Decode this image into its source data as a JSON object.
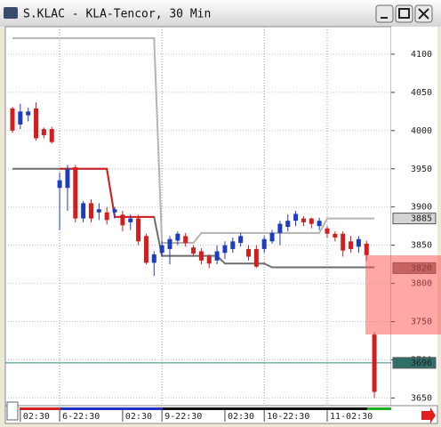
{
  "chart_data": {
    "type": "candlestick",
    "title": "S.KLAC - KLA-Tencor, 30 Min",
    "categories": [
      null,
      "02:30",
      null,
      null,
      null,
      null,
      "6-22:30",
      null,
      null,
      null,
      null,
      null,
      null,
      null,
      "02:30",
      null,
      null,
      null,
      null,
      "9-22:30",
      null,
      null,
      null,
      null,
      null,
      null,
      null,
      "02:30",
      null,
      null,
      null,
      null,
      "10-22:30",
      null,
      null,
      null,
      null,
      null,
      null,
      null,
      "11-02:30",
      null,
      null,
      null,
      null,
      null,
      null
    ],
    "open": [
      4029,
      4008,
      4020,
      4029,
      4002,
      4002,
      3925,
      3925,
      3952,
      3885,
      3905,
      3893,
      3893,
      3893,
      3890,
      3880,
      3885,
      3862,
      3827,
      3840,
      3845,
      3856,
      3862,
      3847,
      3842,
      3835,
      3830,
      3840,
      3845,
      3853,
      3845,
      3845,
      3845,
      3855,
      3866,
      3874,
      3882,
      3885,
      3885,
      3875,
      3872,
      3865,
      3865,
      3855,
      3848,
      3852,
      3733
    ],
    "high": [
      4031,
      4035,
      4030,
      4037,
      4004,
      4005,
      3945,
      3955,
      3955,
      3908,
      3910,
      3905,
      3900,
      3900,
      3895,
      3890,
      3890,
      3865,
      3842,
      3855,
      3862,
      3868,
      3866,
      3850,
      3846,
      3838,
      3850,
      3855,
      3860,
      3866,
      3850,
      3850,
      3862,
      3870,
      3882,
      3890,
      3895,
      3888,
      3886,
      3886,
      3875,
      3868,
      3868,
      3862,
      3862,
      3856,
      3736
    ],
    "low": [
      3997,
      4002,
      4012,
      3987,
      3990,
      3983,
      3870,
      3895,
      3880,
      3880,
      3880,
      3883,
      3877,
      3885,
      3868,
      3870,
      3850,
      3825,
      3810,
      3835,
      3825,
      3850,
      3848,
      3835,
      3825,
      3820,
      3825,
      3832,
      3840,
      3848,
      3830,
      3820,
      3840,
      3852,
      3850,
      3868,
      3875,
      3875,
      3872,
      3870,
      3860,
      3855,
      3835,
      3840,
      3840,
      3830,
      3650
    ],
    "close": [
      4000,
      4025,
      4025,
      3990,
      3994,
      3985,
      3935,
      3950,
      3885,
      3905,
      3885,
      3897,
      3883,
      3897,
      3876,
      3885,
      3855,
      3827,
      3838,
      3850,
      3858,
      3865,
      3853,
      3839,
      3830,
      3826,
      3842,
      3850,
      3855,
      3862,
      3835,
      3822,
      3858,
      3866,
      3878,
      3882,
      3891,
      3880,
      3878,
      3882,
      3865,
      3860,
      3843,
      3845,
      3858,
      3837,
      3658
    ],
    "up_color": "#1e3cc0",
    "down_color": "#d41e1e",
    "series": [
      {
        "color": "#b4b4b4",
        "values": [
          4121,
          4121,
          4121,
          4121,
          4121,
          4121,
          4121,
          4121,
          4121,
          4121,
          4121,
          4121,
          4121,
          4121,
          4121,
          4121,
          4121,
          4121,
          4121,
          3853,
          3853,
          3853,
          3853,
          3853,
          3866,
          3866,
          3866,
          3866,
          3866,
          3866,
          3866,
          3866,
          3866,
          3866,
          3866,
          3866,
          3866,
          3866,
          3866,
          3866,
          3885,
          3885,
          3885,
          3885,
          3885,
          3885,
          3885
        ]
      },
      {
        "color": "#6e6e6e",
        "values": [
          3950,
          3950,
          3950,
          3950,
          3950,
          3950,
          3950,
          3950,
          3950,
          3950,
          3950,
          3950,
          3950,
          3887,
          3887,
          3887,
          3887,
          3887,
          3887,
          3836,
          3836,
          3836,
          3836,
          3836,
          3836,
          3836,
          3836,
          3826,
          3826,
          3826,
          3826,
          3826,
          3826,
          3821,
          3821,
          3821,
          3821,
          3821,
          3821,
          3821,
          3821,
          3821,
          3821,
          3821,
          3821,
          3821,
          3821
        ]
      },
      {
        "color": "#d42020",
        "values": [
          null,
          null,
          null,
          null,
          null,
          null,
          3950,
          3950,
          3950,
          3950,
          3950,
          3950,
          3950,
          3887,
          3887,
          3887,
          3887,
          3887,
          3887,
          null,
          null,
          null,
          null,
          null,
          null,
          null,
          null,
          null,
          null,
          null,
          null,
          null,
          null,
          null,
          null,
          null,
          null,
          null,
          null,
          null,
          null,
          null,
          null,
          null,
          null,
          null,
          null
        ]
      }
    ],
    "hlines": [
      {
        "value": 3696,
        "color": "#2a9080"
      }
    ],
    "price_markers": [
      {
        "value": 3885,
        "color": "#d4d4d4",
        "text_color": "#222222"
      },
      {
        "value": 3820,
        "color": "#8c7878",
        "text_color": "#222222"
      },
      {
        "value": 3696,
        "color": "#2f6f6a",
        "text_color": "#ffffff"
      }
    ],
    "ylim": [
      3640,
      4136
    ],
    "yticks": [
      3650,
      3700,
      3750,
      3800,
      3850,
      3900,
      3950,
      4000,
      4050,
      4100
    ],
    "grid": true
  }
}
